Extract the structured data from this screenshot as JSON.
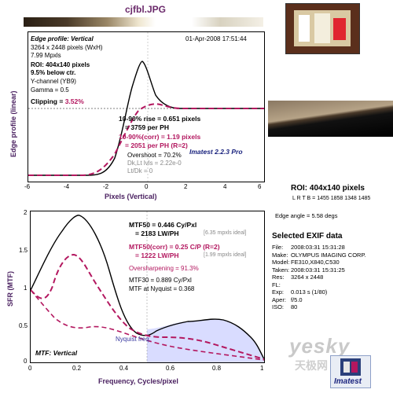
{
  "header": {
    "file_title": "cjfbl.JPG"
  },
  "edge_plot": {
    "title": "Edge profile: Vertical",
    "date": "01-Apr-2008 17:51:44",
    "dims": "3264 x 2448 pixels (WxH)",
    "mpxls": "7.99 Mpxls",
    "roi": "ROI: 404x140 pixels",
    "roi_pct": "9.5% below ctr.",
    "channel": "Y-channel (YB9)",
    "gamma": "Gamma = 0.5",
    "clipping_label": "Clipping =",
    "clipping_value": "3.52%",
    "rise": "10-90% rise = 0.651 pixels",
    "rise_ph": "= 3759 per PH",
    "rise_corr": "10-90%(corr) = 1.19 pixels",
    "rise_corr_ph": "= 2051 per PH   (R=2)",
    "overshoot": "Overshoot = 70.2%",
    "dk_lt": "Dk,Lt lvls = 2.22e-0",
    "lt_dk": "Lt/Dk = 0",
    "version": "Imatest 2.2.3 Pro",
    "ylabel": "Edge profile (linear)",
    "xlabel": "Pixels (Vertical)",
    "xticks": [
      "-6",
      "-4",
      "-2",
      "0",
      "2",
      "4",
      "6"
    ]
  },
  "mtf_plot": {
    "mtf50": "MTF50 = 0.446 Cy/Pxl",
    "mtf50_lw": "= 2183 LW/PH",
    "mtf50_ideal": "[6.35 mpxls ideal]",
    "mtf50c": "MTF50(corr) = 0.25 C/P  (R=2)",
    "mtf50c_lw": "= 1222 LW/PH",
    "mtf50c_ideal": "[1.99 mpxls ideal]",
    "oversharp": "Oversharpening = 91.3%",
    "mtf30": "MTF30 = 0.889 Cy/Pxl",
    "mtf_nyq": "MTF at Nyquist = 0.368",
    "nyquist": "Nyquist freq.",
    "title": "MTF: Vertical",
    "ylabel": "SFR (MTF)",
    "xlabel": "Frequency, Cycles/pixel",
    "xticks": [
      "0",
      "0.2",
      "0.4",
      "0.6",
      "0.8",
      "1"
    ],
    "yticks": [
      "2",
      "1.5",
      "1",
      "0.5",
      "0"
    ]
  },
  "side": {
    "roi": "ROI: 404x140 pixels",
    "lrtb": "L R T B = 1455 1858  1348 1485",
    "edge_angle": "Edge angle = 5.58 degs",
    "exif_title": "Selected EXIF data",
    "exif": [
      {
        "k": "File:",
        "v": "2008:03:31 15:31:28"
      },
      {
        "k": "Make:",
        "v": "OLYMPUS IMAGING CORP."
      },
      {
        "k": "Model:",
        "v": "FE310,X840,C530"
      },
      {
        "k": "Taken:",
        "v": "2008:03:31 15:31:25"
      },
      {
        "k": "Res:",
        "v": "3264 x 2448"
      },
      {
        "k": "FL:",
        "v": ""
      },
      {
        "k": "Exp:",
        "v": "0.013 s  (1/80)"
      },
      {
        "k": "Aper:",
        "v": "f/5.0"
      },
      {
        "k": "ISO:",
        "v": "80"
      }
    ],
    "watermark": "yesky",
    "watermark_cn": "天极网",
    "logo": "Imatest"
  },
  "colors": {
    "black": "#000000",
    "magenta": "#b3175f",
    "accent": "#4a2060",
    "nyquist_fill": "#d9dcff"
  }
}
